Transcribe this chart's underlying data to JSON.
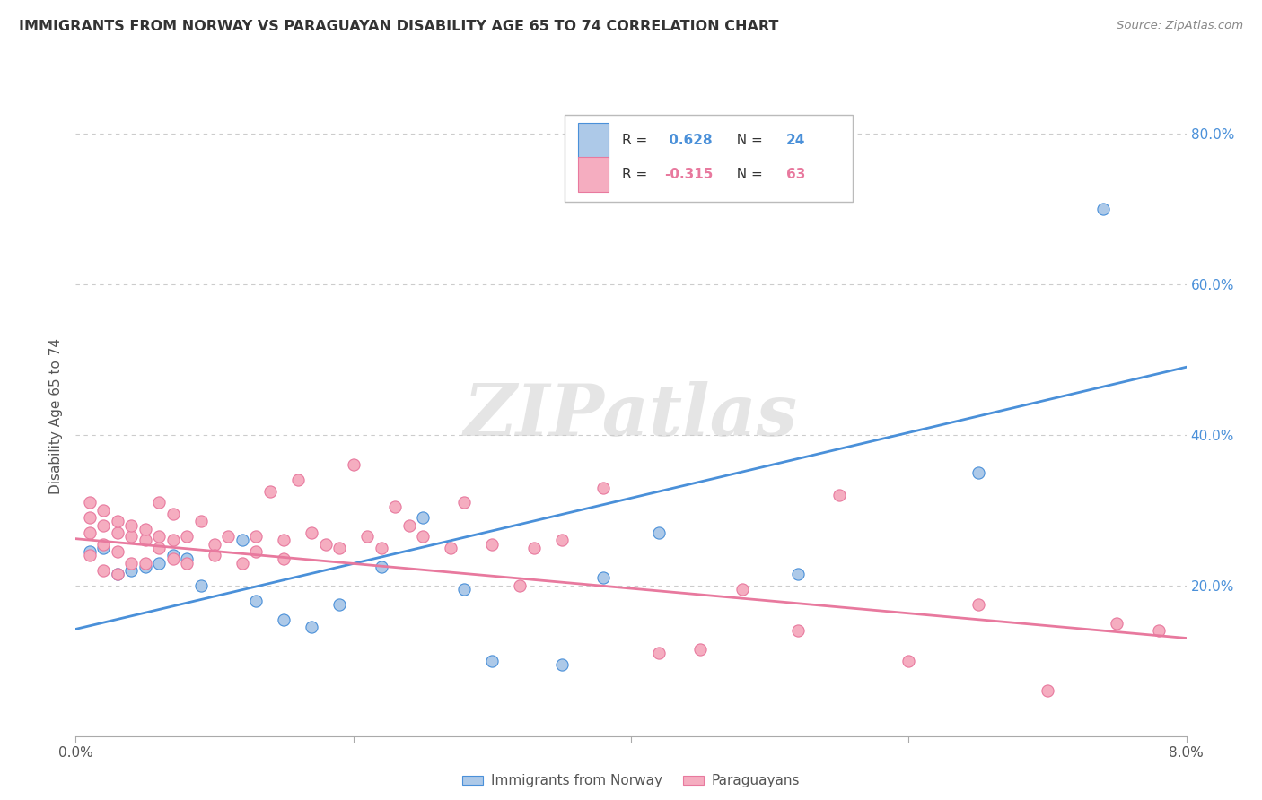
{
  "title": "IMMIGRANTS FROM NORWAY VS PARAGUAYAN DISABILITY AGE 65 TO 74 CORRELATION CHART",
  "source": "Source: ZipAtlas.com",
  "ylabel": "Disability Age 65 to 74",
  "xmin": 0.0,
  "xmax": 0.08,
  "ymin": 0.0,
  "ymax": 0.85,
  "yticks": [
    0.2,
    0.4,
    0.6,
    0.8
  ],
  "ytick_labels": [
    "20.0%",
    "40.0%",
    "60.0%",
    "80.0%"
  ],
  "legend_label1": "Immigrants from Norway",
  "legend_label2": "Paraguayans",
  "R1": 0.628,
  "N1": 24,
  "R2": -0.315,
  "N2": 63,
  "color_norway": "#adc9e8",
  "color_paraguay": "#f5adc0",
  "line_color_norway": "#4a90d9",
  "line_color_paraguay": "#e8799e",
  "norway_x": [
    0.001,
    0.002,
    0.003,
    0.004,
    0.005,
    0.006,
    0.007,
    0.008,
    0.009,
    0.012,
    0.013,
    0.015,
    0.017,
    0.019,
    0.022,
    0.025,
    0.028,
    0.03,
    0.035,
    0.038,
    0.042,
    0.052,
    0.065,
    0.074
  ],
  "norway_y": [
    0.245,
    0.25,
    0.215,
    0.22,
    0.225,
    0.23,
    0.24,
    0.235,
    0.2,
    0.26,
    0.18,
    0.155,
    0.145,
    0.175,
    0.225,
    0.29,
    0.195,
    0.1,
    0.095,
    0.21,
    0.27,
    0.215,
    0.35,
    0.7
  ],
  "paraguay_x": [
    0.001,
    0.001,
    0.001,
    0.001,
    0.002,
    0.002,
    0.002,
    0.002,
    0.003,
    0.003,
    0.003,
    0.003,
    0.004,
    0.004,
    0.004,
    0.005,
    0.005,
    0.005,
    0.006,
    0.006,
    0.006,
    0.007,
    0.007,
    0.007,
    0.008,
    0.008,
    0.009,
    0.01,
    0.01,
    0.011,
    0.012,
    0.013,
    0.013,
    0.014,
    0.015,
    0.015,
    0.016,
    0.017,
    0.018,
    0.019,
    0.02,
    0.021,
    0.022,
    0.023,
    0.024,
    0.025,
    0.027,
    0.028,
    0.03,
    0.032,
    0.033,
    0.035,
    0.038,
    0.042,
    0.045,
    0.048,
    0.052,
    0.055,
    0.06,
    0.065,
    0.07,
    0.075,
    0.078
  ],
  "paraguay_y": [
    0.24,
    0.27,
    0.29,
    0.31,
    0.22,
    0.28,
    0.255,
    0.3,
    0.215,
    0.245,
    0.27,
    0.285,
    0.23,
    0.265,
    0.28,
    0.23,
    0.26,
    0.275,
    0.25,
    0.265,
    0.31,
    0.235,
    0.26,
    0.295,
    0.23,
    0.265,
    0.285,
    0.255,
    0.24,
    0.265,
    0.23,
    0.245,
    0.265,
    0.325,
    0.235,
    0.26,
    0.34,
    0.27,
    0.255,
    0.25,
    0.36,
    0.265,
    0.25,
    0.305,
    0.28,
    0.265,
    0.25,
    0.31,
    0.255,
    0.2,
    0.25,
    0.26,
    0.33,
    0.11,
    0.115,
    0.195,
    0.14,
    0.32,
    0.1,
    0.175,
    0.06,
    0.15,
    0.14
  ],
  "norway_line_x": [
    0.0,
    0.08
  ],
  "norway_line_y": [
    0.142,
    0.49
  ],
  "paraguay_line_x": [
    0.0,
    0.08
  ],
  "paraguay_line_y": [
    0.262,
    0.13
  ],
  "watermark": "ZIPatlas",
  "background_color": "#ffffff",
  "grid_color": "#cccccc"
}
